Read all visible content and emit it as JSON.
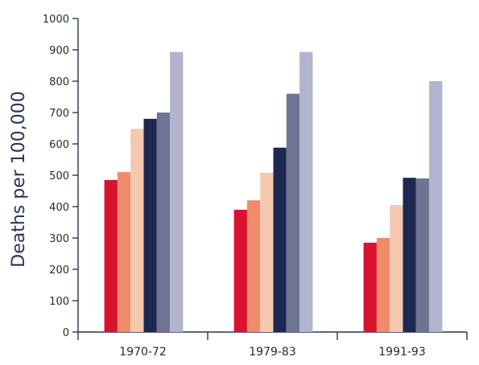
{
  "chart_data": {
    "type": "bar",
    "ylabel": "Deaths per 100,000",
    "xlabel": "",
    "ylim": [
      0,
      1000
    ],
    "yticks": [
      0,
      100,
      200,
      300,
      400,
      500,
      600,
      700,
      800,
      900,
      1000
    ],
    "categories": [
      "1970-72",
      "1979-83",
      "1991-93"
    ],
    "series": [
      {
        "color": "#d9122f",
        "values": [
          485,
          390,
          285
        ]
      },
      {
        "color": "#f08b6c",
        "values": [
          510,
          420,
          300
        ]
      },
      {
        "color": "#f6c8b0",
        "values": [
          648,
          508,
          405
        ]
      },
      {
        "color": "#1d2850",
        "values": [
          680,
          588,
          492
        ]
      },
      {
        "color": "#6f7495",
        "values": [
          700,
          760,
          490
        ]
      },
      {
        "color": "#b2b4ce",
        "values": [
          893,
          893,
          800
        ]
      }
    ],
    "grid": false,
    "legend": "none"
  }
}
